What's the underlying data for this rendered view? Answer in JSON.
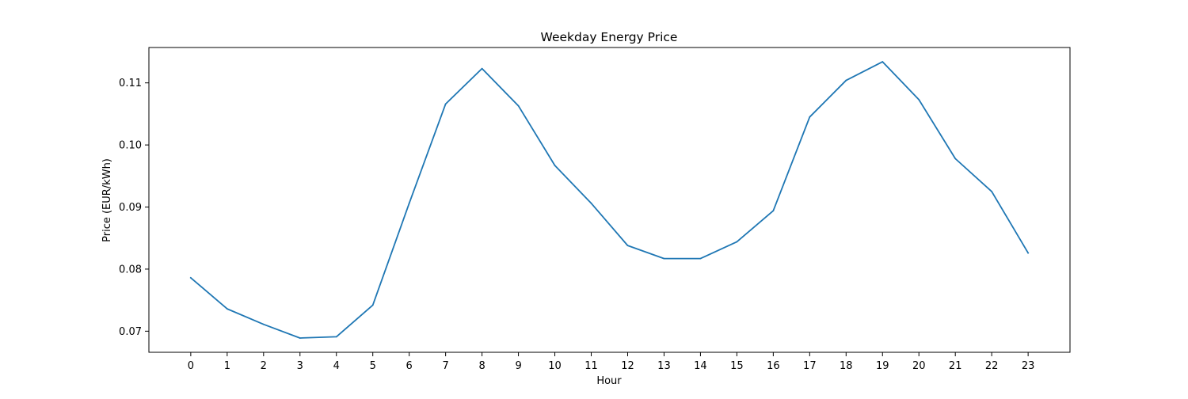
{
  "chart_data": {
    "type": "line",
    "title": "Weekday Energy Price",
    "xlabel": "Hour",
    "ylabel": "Price (EUR/kWh)",
    "x": [
      0,
      1,
      2,
      3,
      4,
      5,
      6,
      7,
      8,
      9,
      10,
      11,
      12,
      13,
      14,
      15,
      16,
      17,
      18,
      19,
      20,
      21,
      22,
      23
    ],
    "series": [
      {
        "values": [
          0.0786,
          0.0736,
          0.0711,
          0.0689,
          0.0691,
          0.0742,
          0.0906,
          0.1066,
          0.1123,
          0.1063,
          0.0967,
          0.0906,
          0.0838,
          0.0817,
          0.0817,
          0.0844,
          0.0894,
          0.1045,
          0.1104,
          0.1134,
          0.1073,
          0.0978,
          0.0925,
          0.0826
        ],
        "color": "#1f77b4"
      }
    ],
    "xticks": [
      "0",
      "1",
      "2",
      "3",
      "4",
      "5",
      "6",
      "7",
      "8",
      "9",
      "10",
      "11",
      "12",
      "13",
      "14",
      "15",
      "16",
      "17",
      "18",
      "19",
      "20",
      "21",
      "22",
      "23"
    ],
    "yticks": [
      0.07,
      0.08,
      0.09,
      0.1,
      0.11
    ],
    "ytick_labels": [
      "0.07",
      "0.08",
      "0.09",
      "0.10",
      "0.11"
    ],
    "xlim": [
      -1.15,
      24.15
    ],
    "ylim": [
      0.0666,
      0.1157
    ],
    "grid": false,
    "legend": false
  }
}
